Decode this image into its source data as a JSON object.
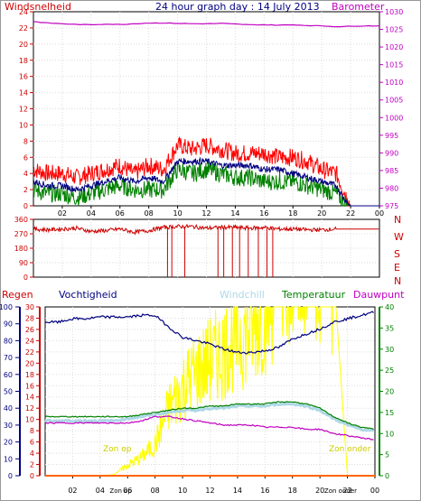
{
  "title": "24 hour graph day : 14 July 2013",
  "colors": {
    "wind_avg": "#000080",
    "wind_gust": "#ff0000",
    "wind_other": "#008000",
    "barometer": "#c000c0",
    "direction": "#cc0000",
    "humidity": "#000080",
    "windchill": "#add8e6",
    "temperature": "#008000",
    "dewpoint": "#c000c0",
    "rain": "#ff6600",
    "solar": "#ffff00",
    "axis_left": "#cc0000",
    "axis_right_baro": "#c000c0",
    "axis_humidity": "#000080",
    "axis_temp": "#008000"
  },
  "chart_data": [
    {
      "type": "line",
      "name": "wind-barometer",
      "labels": {
        "left": "Windsnelheid",
        "right": "Barometer"
      },
      "x_ticks": [
        "02",
        "04",
        "06",
        "08",
        "10",
        "12",
        "14",
        "16",
        "18",
        "20",
        "22",
        "00"
      ],
      "ylim": [
        0,
        24
      ],
      "y_ticks": [
        "0",
        "2",
        "4",
        "6",
        "8",
        "10",
        "12",
        "14",
        "16",
        "18",
        "20",
        "22",
        "24"
      ],
      "y2lim": [
        975,
        1030
      ],
      "y2_ticks": [
        "975",
        "980",
        "985",
        "990",
        "995",
        "1000",
        "1005",
        "1010",
        "1015",
        "1020",
        "1025",
        "1030"
      ],
      "hours": [
        0,
        1,
        2,
        3,
        4,
        5,
        6,
        7,
        8,
        9,
        10,
        11,
        12,
        13,
        14,
        15,
        16,
        17,
        18,
        19,
        20,
        21,
        21.5,
        22,
        23,
        24
      ],
      "series": [
        {
          "key": "gust",
          "values": [
            4.5,
            4,
            4,
            3.5,
            4,
            4.5,
            5,
            4,
            5,
            4.5,
            7.5,
            7,
            7.5,
            7,
            6.5,
            6.5,
            6.5,
            6,
            6,
            5.5,
            4.5,
            4,
            2,
            0,
            0,
            0
          ]
        },
        {
          "key": "avg",
          "values": [
            3,
            2.5,
            2.5,
            2,
            2.5,
            3,
            3.5,
            3,
            3.5,
            3,
            5.5,
            5.5,
            5.5,
            5,
            5,
            5,
            4.5,
            4.5,
            4,
            3.5,
            3,
            2.5,
            1,
            0,
            0,
            0
          ]
        },
        {
          "key": "other",
          "values": [
            2,
            1.5,
            1.5,
            1,
            1.5,
            2,
            2.5,
            2,
            2,
            2,
            4.5,
            4,
            4.5,
            4,
            3.5,
            3.5,
            3,
            3,
            3,
            2.5,
            2,
            1.5,
            0.5,
            0,
            0,
            0
          ]
        }
      ],
      "barometer": [
        1027.2,
        1026.8,
        1026.6,
        1026.4,
        1026.3,
        1026.5,
        1026.4,
        1026.6,
        1026.8,
        1026.8,
        1026.7,
        1026.6,
        1026.6,
        1026.7,
        1026.5,
        1026.3,
        1026.3,
        1026.2,
        1026.3,
        1026.1,
        1026.0,
        1025.8,
        1025.8,
        1025.9,
        1026.0,
        1026.0
      ]
    },
    {
      "type": "line",
      "name": "wind-direction",
      "labels": {
        "compass": [
          "N",
          "W",
          "S",
          "E",
          "N"
        ]
      },
      "ylim": [
        0,
        360
      ],
      "y_ticks": [
        "0",
        "90",
        "180",
        "270",
        "360"
      ],
      "hours": [
        0,
        1,
        2,
        3,
        4,
        5,
        6,
        7,
        8,
        9,
        10,
        11,
        12,
        13,
        14,
        15,
        16,
        17,
        18,
        19,
        20,
        21,
        22,
        23,
        24
      ],
      "values": [
        300,
        295,
        300,
        305,
        285,
        290,
        300,
        280,
        290,
        310,
        315,
        315,
        305,
        310,
        310,
        305,
        310,
        300,
        300,
        295,
        295,
        300,
        300,
        300,
        300
      ],
      "north_excursions": [
        9.3,
        9.6,
        10.5,
        12.8,
        13.2,
        13.8,
        14.3,
        14.9,
        15.6,
        16.2,
        16.6
      ]
    },
    {
      "type": "line",
      "name": "weather",
      "labels": {
        "rain": "Regen",
        "humidity": "Vochtigheid",
        "windchill": "Windchill",
        "temperature": "Temperatuur",
        "dewpoint": "Dauwpunt",
        "sunrise": "Zon op",
        "sunset": "Zon onder"
      },
      "x_ticks": [
        "02",
        "04",
        "06",
        "08",
        "10",
        "12",
        "14",
        "16",
        "18",
        "20",
        "22",
        "00"
      ],
      "x_tick_sunrise": "Zon op",
      "x_tick_sunset": "Zon onder",
      "rain_ticks": [
        "0",
        "2",
        "4",
        "6",
        "8",
        "10",
        "12",
        "14",
        "16",
        "18",
        "20",
        "22",
        "24",
        "26",
        "28",
        "30"
      ],
      "rain_lim": [
        0,
        30
      ],
      "humidity_ticks": [
        "0",
        "10",
        "20",
        "30",
        "40",
        "50",
        "60",
        "70",
        "80",
        "90",
        "100"
      ],
      "humidity_lim": [
        0,
        100
      ],
      "temp_ticks": [
        "0",
        "5",
        "10",
        "15",
        "20",
        "25",
        "30",
        "35",
        "40"
      ],
      "temp_lim": [
        0,
        40
      ],
      "hours": [
        0,
        1,
        2,
        3,
        4,
        5,
        6,
        7,
        8,
        9,
        10,
        11,
        12,
        13,
        14,
        15,
        16,
        17,
        18,
        19,
        20,
        21,
        22,
        23,
        24
      ],
      "humidity": [
        91,
        91,
        93,
        93,
        94,
        94,
        94,
        95,
        95,
        88,
        82,
        80,
        78,
        75,
        73,
        73,
        74,
        76,
        81,
        84,
        87,
        91,
        93,
        95,
        97
      ],
      "temperature": [
        14,
        14,
        14,
        14,
        14,
        14,
        14,
        14.5,
        15,
        15.5,
        16,
        16,
        16.5,
        16.5,
        17,
        17,
        17,
        17.5,
        17.5,
        17,
        16,
        14,
        12.5,
        11.5,
        11
      ],
      "windchill": [
        13,
        13,
        13,
        13,
        13,
        13,
        13.5,
        14,
        14.5,
        15,
        15.5,
        15.5,
        16,
        16,
        16.5,
        16.5,
        16.5,
        17,
        17,
        16.5,
        15.5,
        13.5,
        12,
        11,
        10.5
      ],
      "dewpoint": [
        12.5,
        12.5,
        12.5,
        12.5,
        12.5,
        12.5,
        12.5,
        13,
        14,
        14,
        13.5,
        13,
        12.5,
        12,
        12,
        12,
        11.5,
        11.5,
        11.5,
        11,
        11,
        10,
        9.5,
        9,
        8.5
      ],
      "rain": [
        0,
        0,
        0,
        0,
        0,
        0,
        0,
        0,
        0,
        0,
        0,
        0,
        0,
        0,
        0,
        0,
        0,
        0,
        0,
        0,
        0,
        0,
        0,
        0,
        0
      ],
      "solar": [
        0,
        0,
        0,
        0,
        0,
        0.2,
        2,
        3.5,
        6,
        13,
        17,
        20,
        22,
        24,
        27,
        28,
        32,
        37,
        38,
        36,
        40,
        36,
        0,
        0,
        0
      ]
    }
  ]
}
